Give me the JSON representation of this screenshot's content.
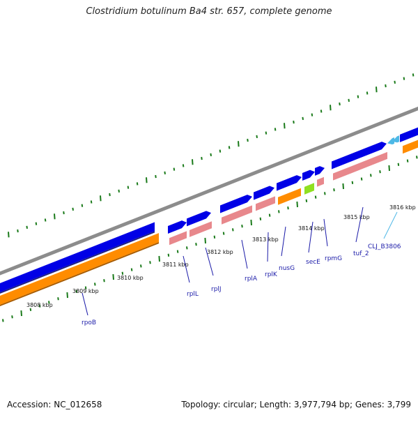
{
  "title": "Clostridium botulinum Ba4 str. 657, complete genome",
  "footer": {
    "accession": "Accession: NC_012658",
    "summary": "Topology: circular; Length: 3,977,794 bp; Genes: 3,799"
  },
  "colors": {
    "backbone": "#8c8c8c",
    "cds_forward": "#0000e6",
    "gene_forward": "#e8888c",
    "cds_reverse": "#ff8c00",
    "gene_reverse_special": "#90e020",
    "trna": "#4db8e6",
    "ticks": "#1a7a1a",
    "label_line": "#0000aa",
    "label_special": "#4db8e6"
  },
  "tick_labels": [
    "3808 kbp",
    "3809 kbp",
    "3810 kbp",
    "3811 kbp",
    "3812 kbp",
    "3813 kbp",
    "3814 kbp",
    "3815 kbp",
    "3816 kbp"
  ],
  "gene_labels": [
    {
      "text": "rpoB",
      "color": "#1a1aa8"
    },
    {
      "text": "rplL",
      "color": "#1a1aa8"
    },
    {
      "text": "rplJ",
      "color": "#1a1aa8"
    },
    {
      "text": "rplA",
      "color": "#1a1aa8"
    },
    {
      "text": "rplK",
      "color": "#1a1aa8"
    },
    {
      "text": "nusG",
      "color": "#1a1aa8"
    },
    {
      "text": "secE",
      "color": "#1a1aa8"
    },
    {
      "text": "rpmG",
      "color": "#1a1aa8"
    },
    {
      "text": "tuf_2",
      "color": "#1a1aa8"
    },
    {
      "text": "CLJ_B3806",
      "color": "#4db8e6"
    }
  ]
}
